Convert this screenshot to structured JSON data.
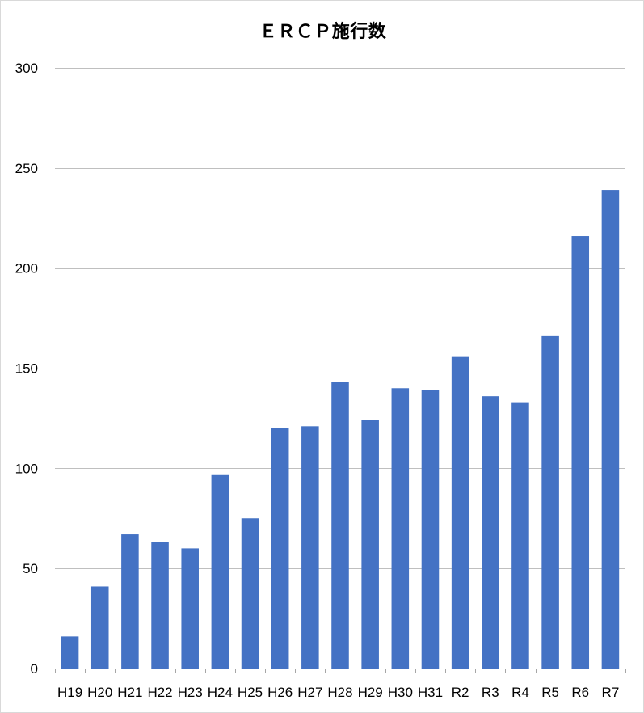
{
  "chart_data": {
    "type": "bar",
    "title": "ＥＲＣＰ施行数",
    "xlabel": "",
    "ylabel": "",
    "categories": [
      "H19",
      "H20",
      "H21",
      "H22",
      "H23",
      "H24",
      "H25",
      "H26",
      "H27",
      "H28",
      "H29",
      "H30",
      "H31",
      "R2",
      "R3",
      "R4",
      "R5",
      "R6",
      "R7"
    ],
    "values": [
      16,
      41,
      67,
      63,
      60,
      97,
      75,
      120,
      121,
      143,
      124,
      140,
      139,
      156,
      136,
      133,
      166,
      216,
      239
    ],
    "ylim": [
      0,
      300
    ],
    "yticks": [
      0,
      50,
      100,
      150,
      200,
      250,
      300
    ],
    "grid": true,
    "legend": "none",
    "bar_color": "#4472c4",
    "grid_color": "#bfbfbf",
    "axis_color": "#a6a6a6"
  }
}
